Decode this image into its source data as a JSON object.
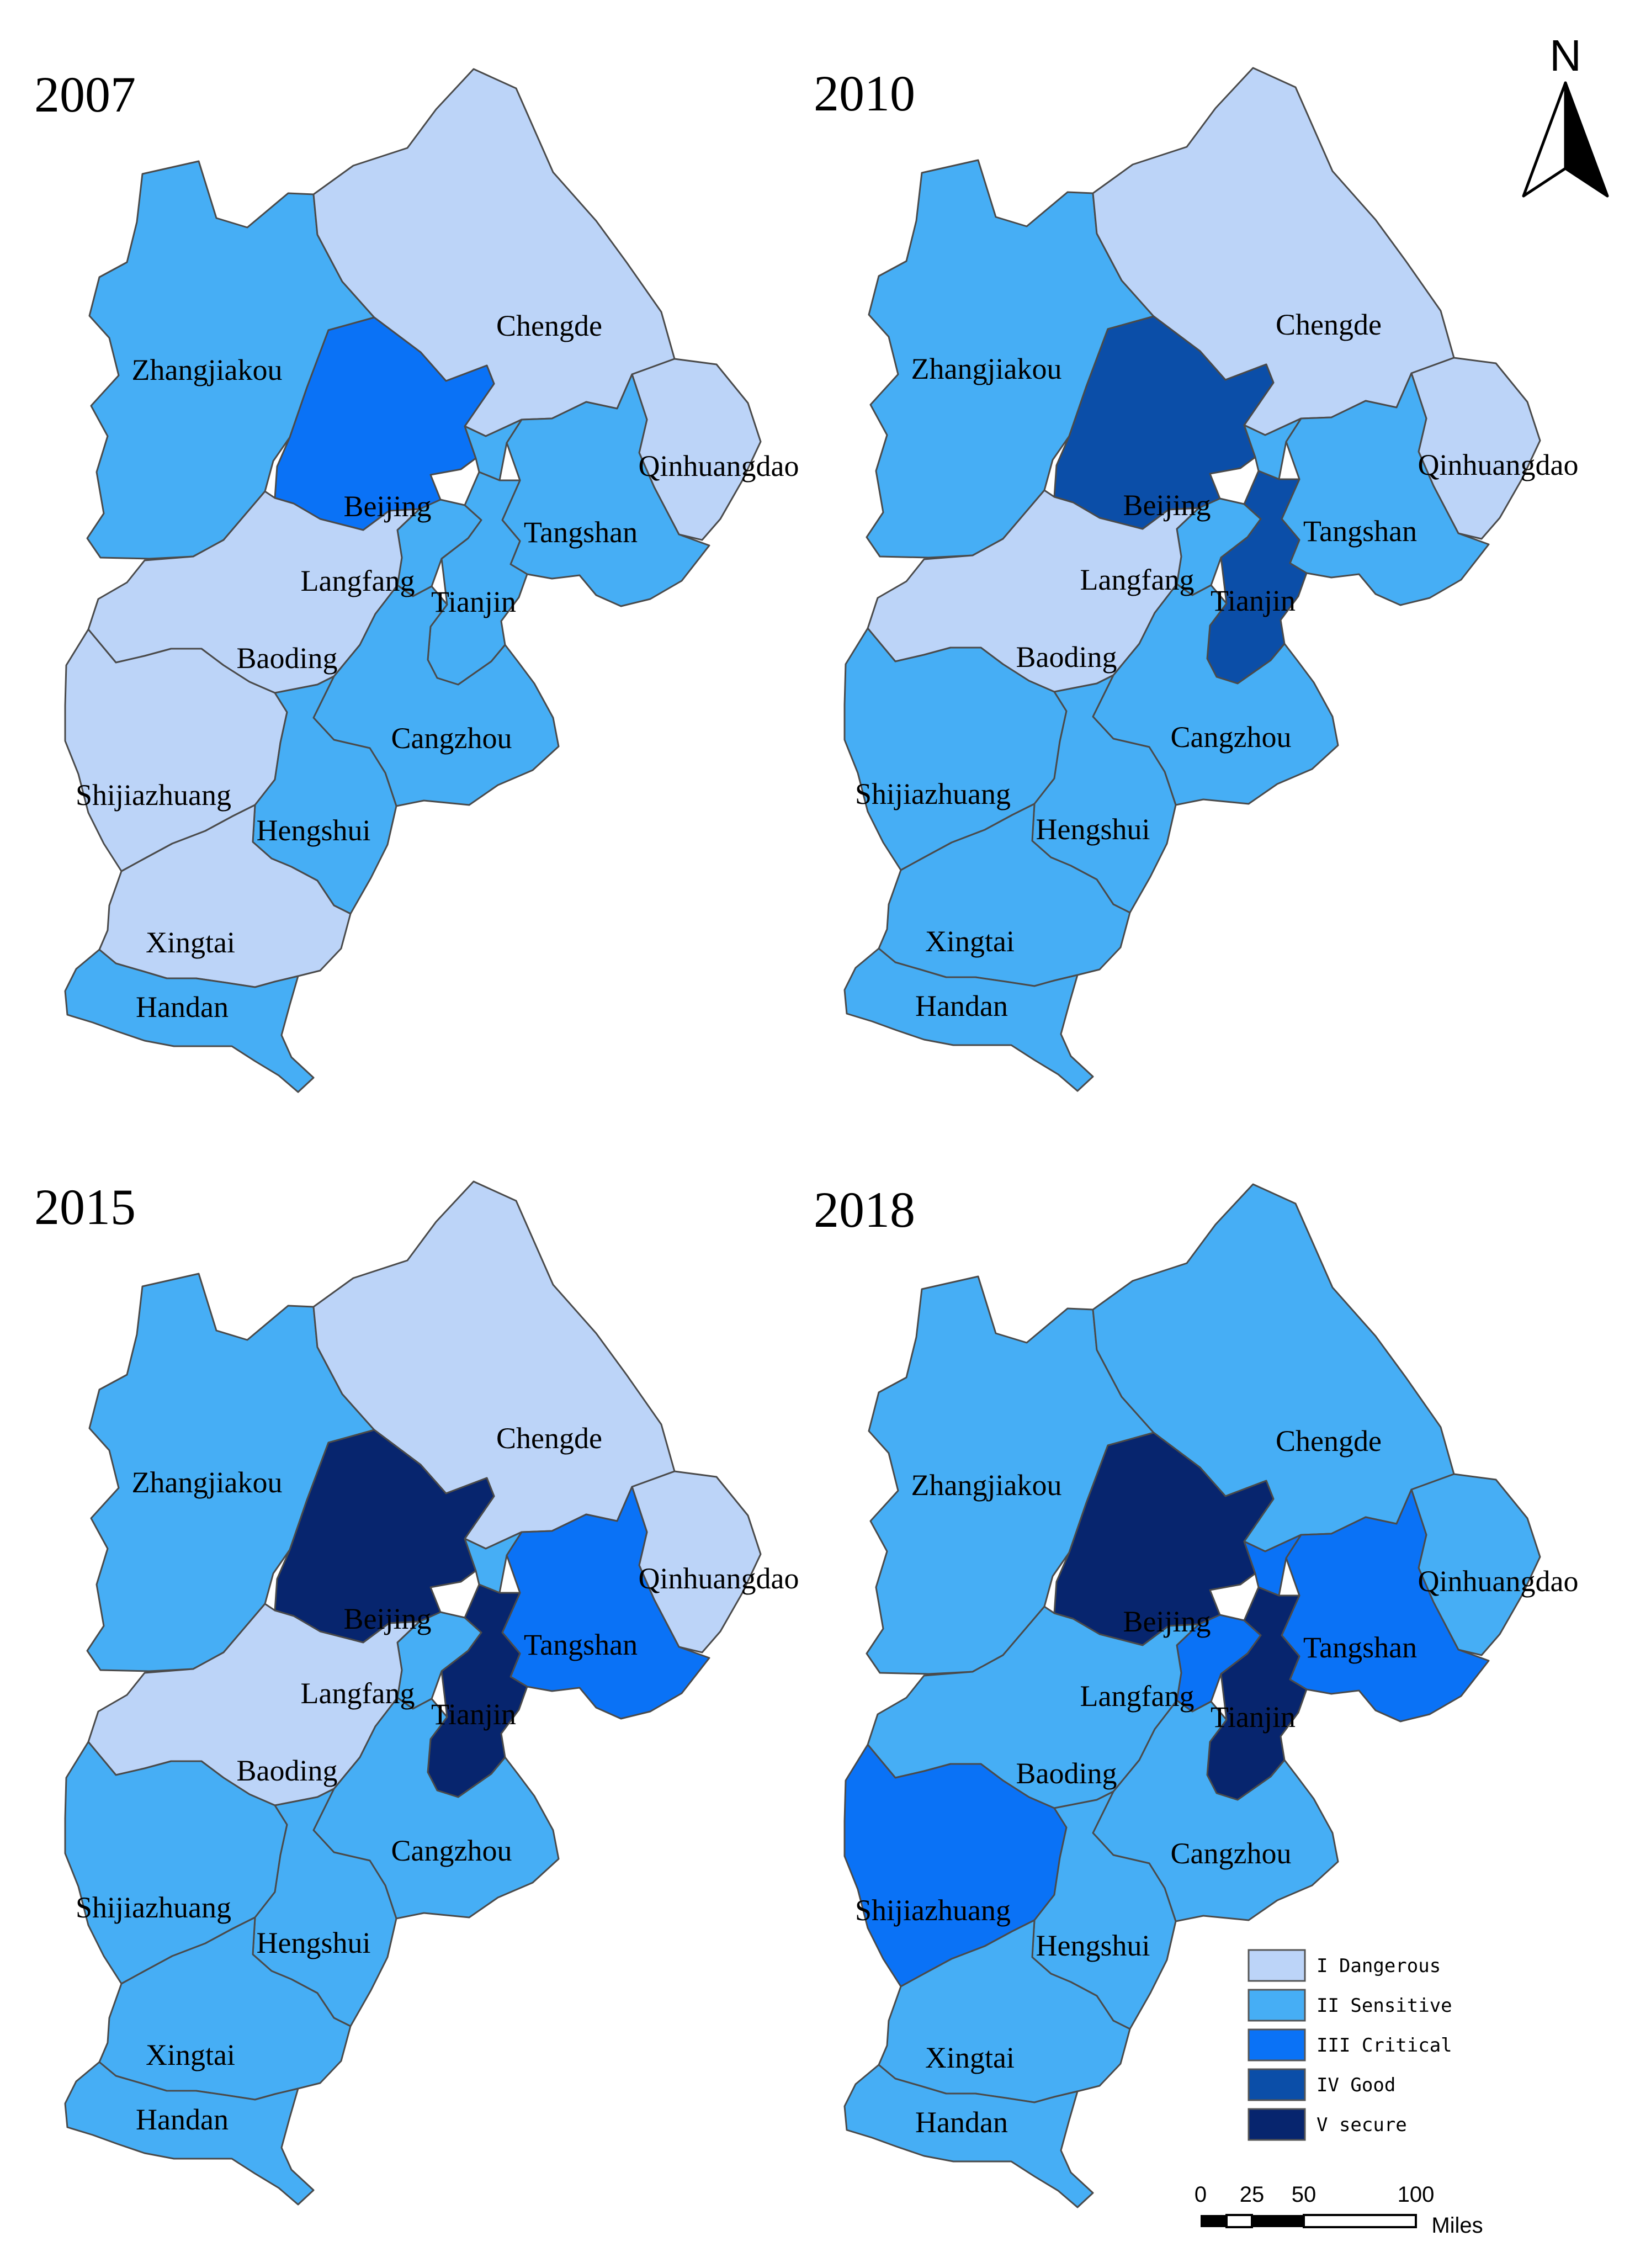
{
  "class_colors": {
    "I": "#bcd4f8",
    "II": "#46aef5",
    "III": "#0a72f6",
    "IV": "#0b4ea8",
    "V": "#07256e"
  },
  "cities": [
    "Zhangjiakou",
    "Chengde",
    "Beijing",
    "Qinhuangdao",
    "Tangshan",
    "Langfang",
    "Tianjin",
    "Baoding",
    "Cangzhou",
    "Shijiazhuang",
    "Hengshui",
    "Xingtai",
    "Handan"
  ],
  "panels": [
    {
      "year": "2007",
      "classes": {
        "Zhangjiakou": "II",
        "Chengde": "I",
        "Beijing": "III",
        "Qinhuangdao": "I",
        "Tangshan": "II",
        "Langfang": "II",
        "Tianjin": "II",
        "Baoding": "I",
        "Cangzhou": "II",
        "Shijiazhuang": "I",
        "Hengshui": "II",
        "Xingtai": "I",
        "Handan": "II"
      }
    },
    {
      "year": "2010",
      "classes": {
        "Zhangjiakou": "II",
        "Chengde": "I",
        "Beijing": "IV",
        "Qinhuangdao": "I",
        "Tangshan": "II",
        "Langfang": "II",
        "Tianjin": "IV",
        "Baoding": "I",
        "Cangzhou": "II",
        "Shijiazhuang": "II",
        "Hengshui": "II",
        "Xingtai": "II",
        "Handan": "II"
      }
    },
    {
      "year": "2015",
      "classes": {
        "Zhangjiakou": "II",
        "Chengde": "I",
        "Beijing": "V",
        "Qinhuangdao": "I",
        "Tangshan": "III",
        "Langfang": "II",
        "Tianjin": "V",
        "Baoding": "I",
        "Cangzhou": "II",
        "Shijiazhuang": "II",
        "Hengshui": "II",
        "Xingtai": "II",
        "Handan": "II"
      }
    },
    {
      "year": "2018",
      "classes": {
        "Zhangjiakou": "II",
        "Chengde": "II",
        "Beijing": "V",
        "Qinhuangdao": "II",
        "Tangshan": "III",
        "Langfang": "III",
        "Tianjin": "V",
        "Baoding": "II",
        "Cangzhou": "II",
        "Shijiazhuang": "III",
        "Hengshui": "II",
        "Xingtai": "II",
        "Handan": "II"
      }
    }
  ],
  "legend": [
    {
      "class": "I",
      "label": "I Dangerous"
    },
    {
      "class": "II",
      "label": "II Sensitive"
    },
    {
      "class": "III",
      "label": "III Critical"
    },
    {
      "class": "IV",
      "label": "IV Good"
    },
    {
      "class": "V",
      "label": "V secure"
    }
  ],
  "north_arrow": {
    "label": "N"
  },
  "scale_bar": {
    "ticks": [
      "0",
      "25",
      "50",
      "100"
    ],
    "unit": "Miles"
  }
}
